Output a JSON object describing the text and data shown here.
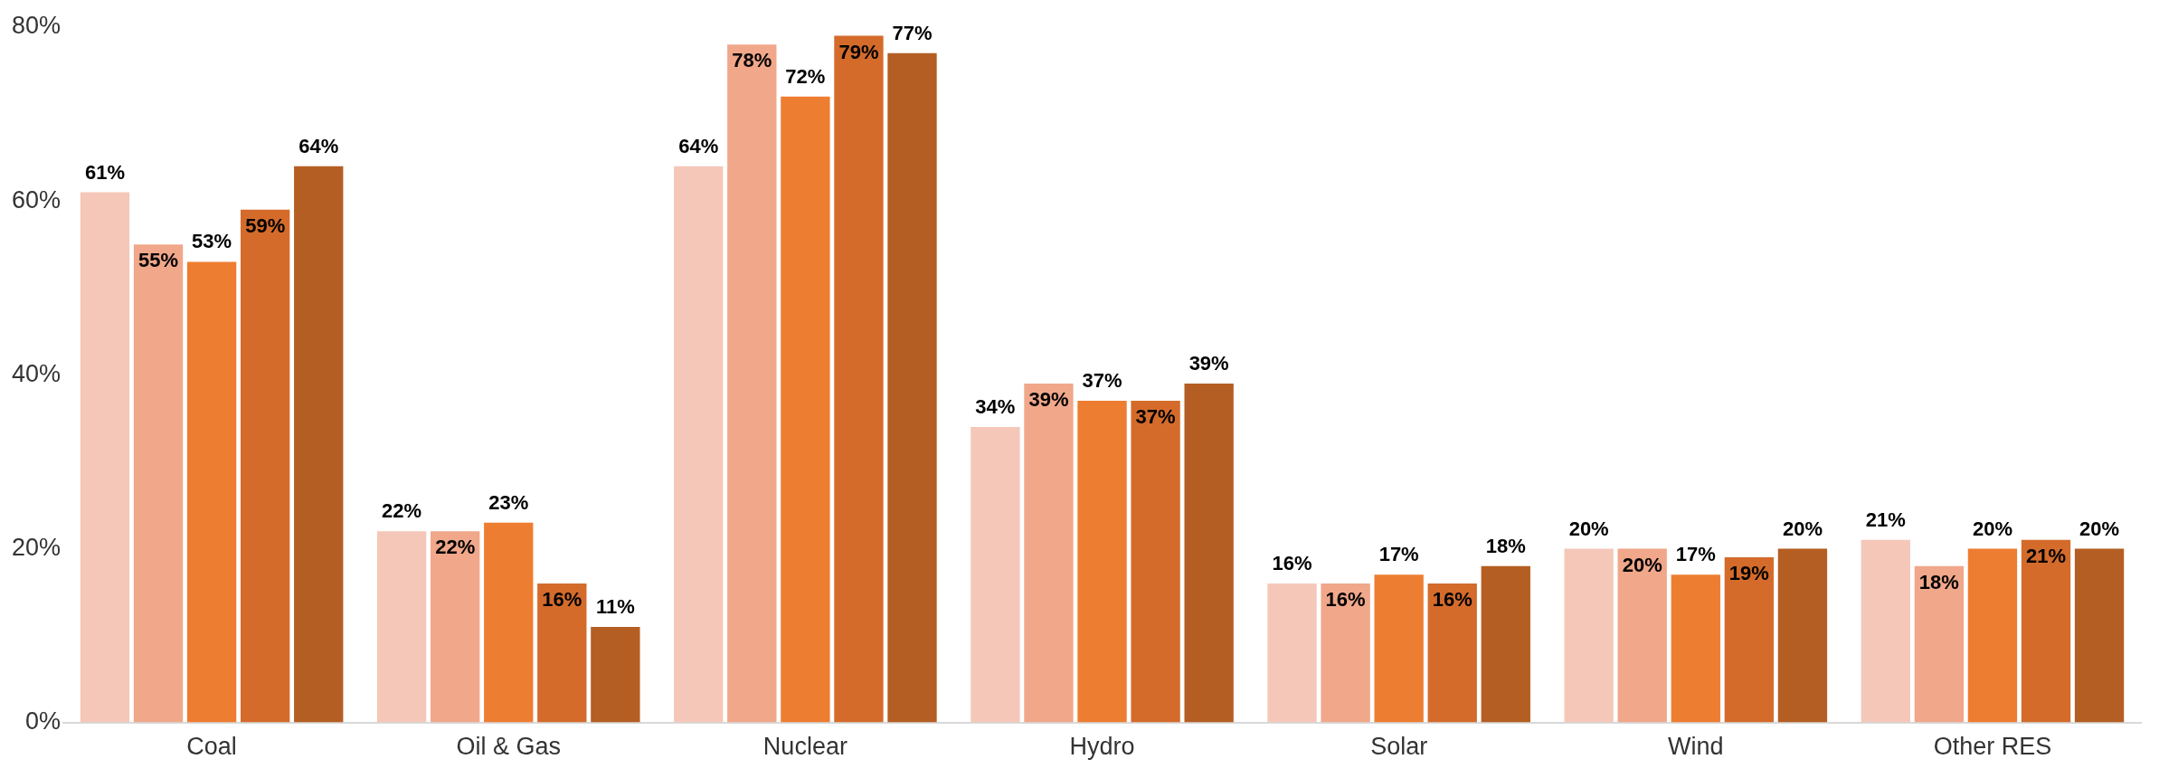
{
  "chart_data": {
    "type": "bar",
    "categories": [
      "Coal",
      "Oil & Gas",
      "Nuclear",
      "Hydro",
      "Solar",
      "Wind",
      "Other RES"
    ],
    "series": [
      {
        "color": "#f5c7b8",
        "values": [
          61,
          22,
          64,
          34,
          16,
          20,
          21
        ],
        "value_labels": [
          "61%",
          "22%",
          "64%",
          "34%",
          "16%",
          "20%",
          "21%"
        ]
      },
      {
        "color": "#f0a78a",
        "values": [
          55,
          22,
          78,
          39,
          16,
          20,
          18
        ],
        "value_labels": [
          "55%",
          "22%",
          "78%",
          "39%",
          "16%",
          "20%",
          "18%"
        ]
      },
      {
        "color": "#ed7d31",
        "values": [
          53,
          23,
          72,
          37,
          17,
          17,
          20
        ],
        "value_labels": [
          "53%",
          "23%",
          "72%",
          "37%",
          "17%",
          "17%",
          "20%"
        ]
      },
      {
        "color": "#d46b2b",
        "values": [
          59,
          16,
          79,
          37,
          16,
          19,
          21
        ],
        "value_labels": [
          "59%",
          "16%",
          "79%",
          "37%",
          "16%",
          "19%",
          "21%"
        ]
      },
      {
        "color": "#b45e23",
        "values": [
          64,
          11,
          77,
          39,
          18,
          20,
          20
        ],
        "value_labels": [
          "64%",
          "11%",
          "77%",
          "39%",
          "18%",
          "20%",
          "20%"
        ]
      }
    ],
    "ylim": [
      0,
      80
    ],
    "yticks": [
      {
        "value": 0,
        "label": "0%"
      },
      {
        "value": 20,
        "label": "20%"
      },
      {
        "value": 40,
        "label": "40%"
      },
      {
        "value": 60,
        "label": "60%"
      },
      {
        "value": 80,
        "label": "80%"
      }
    ],
    "grid": false,
    "legend": false
  }
}
